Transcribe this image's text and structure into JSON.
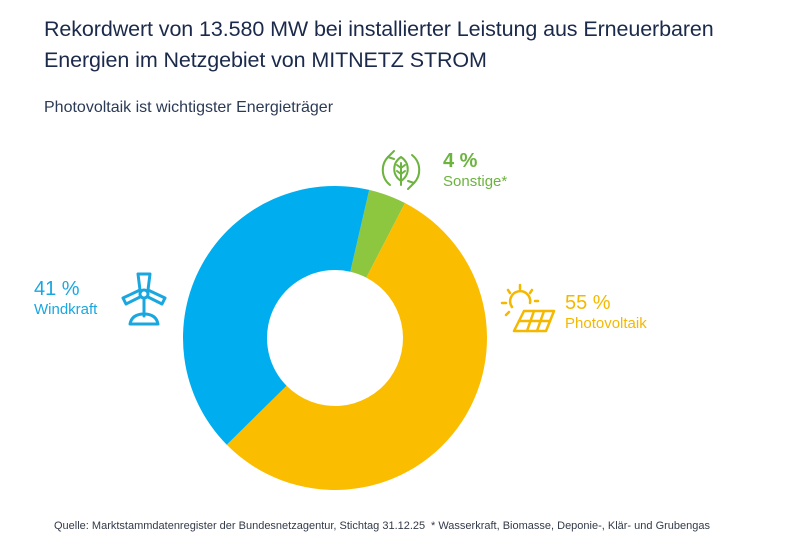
{
  "header": {
    "title_line1": "Rekordwert von 13.580 MW bei installierter Leistung aus Erneuerbaren",
    "title_line2": "Energien im Netzgebiet von MITNETZ STROM",
    "subtitle": "Photovoltaik ist wichtigster Energieträger"
  },
  "labels": {
    "wind": {
      "pct": "41 %",
      "name": "Windkraft",
      "icon": "wind-turbine-icon"
    },
    "sonstige": {
      "pct": "4 %",
      "name": "Sonstige*",
      "icon": "leaf-recycle-icon"
    },
    "pv": {
      "pct": "55 %",
      "name": "Photovoltaik",
      "icon": "sun-solar-panel-icon"
    }
  },
  "footer": {
    "source": "Quelle: Marktstammdatenregister der Bundesnetzagentur, Stichtag 31.12.25",
    "note": "* Wasserkraft, Biomasse, Deponie-, Klär- und Grubengas"
  },
  "chart_data": {
    "type": "pie",
    "variant": "donut",
    "title": "Rekordwert von 13.580 MW bei installierter Leistung aus Erneuerbaren Energien im Netzgebiet von MITNETZ STROM",
    "subtitle": "Photovoltaik ist wichtigster Energieträger",
    "total_mw": 13580,
    "unit": "%",
    "start_angle_deg": 13,
    "direction": "clockwise",
    "slices": [
      {
        "name": "Sonstige*",
        "value": 4,
        "color": "#8dc63f"
      },
      {
        "name": "Photovoltaik",
        "value": 55,
        "color": "#fbbd00"
      },
      {
        "name": "Windkraft",
        "value": 41,
        "color": "#00aeef"
      }
    ],
    "legend": "none (direct labels)"
  }
}
